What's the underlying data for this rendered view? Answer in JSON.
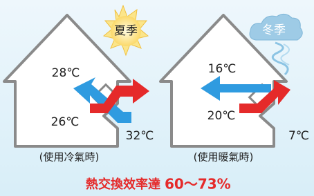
{
  "left": {
    "season": "夏季",
    "indoor_top": "28℃",
    "indoor_bottom": "26℃",
    "outdoor": "32℃",
    "caption": "(使用冷氣時)"
  },
  "right": {
    "season": "冬季",
    "indoor_top": "16℃",
    "indoor_bottom": "20℃",
    "outdoor": "7℃",
    "caption": "(使用暖氣時)"
  },
  "footer": {
    "text": "熱交換效率達",
    "value": "60～73%"
  }
}
